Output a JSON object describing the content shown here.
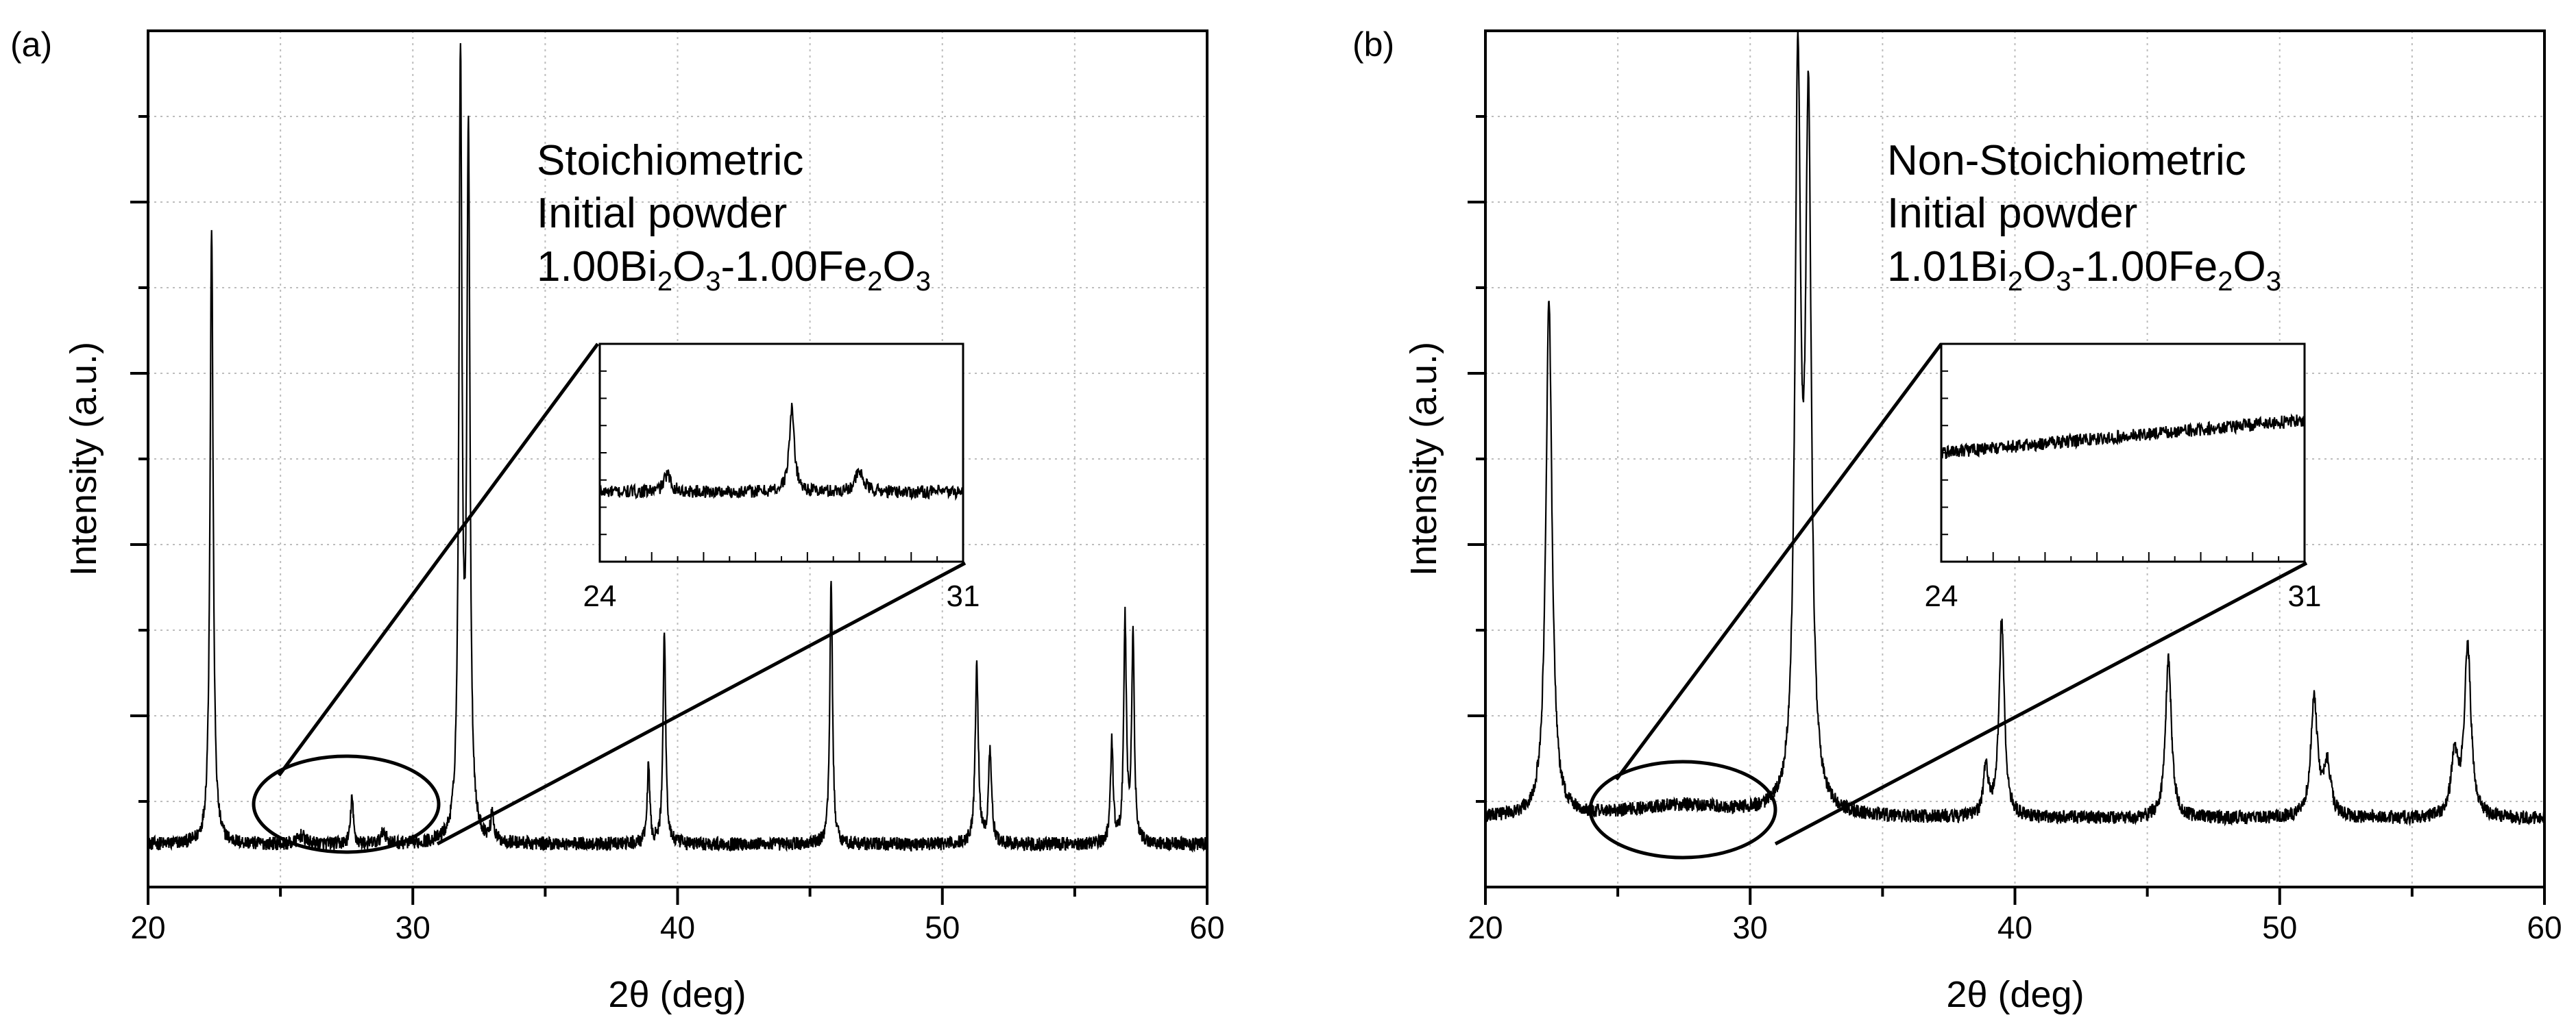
{
  "figure": {
    "panels": [
      {
        "id": "a",
        "panel_label": "(a)",
        "annotation": {
          "line1": "Stoichiometric",
          "line2": "Initial powder",
          "formula_parts": [
            "1.00Bi",
            "2",
            "O",
            "3",
            "-1.00Fe",
            "2",
            "O",
            "3"
          ]
        },
        "inset": {
          "x_start_label": "24",
          "x_end_label": "31"
        }
      },
      {
        "id": "b",
        "panel_label": "(b)",
        "annotation": {
          "line1": "Non-Stoichiometric",
          "line2": "Initial powder",
          "formula_parts": [
            "1.01Bi",
            "2",
            "O",
            "3",
            "-1.00Fe",
            "2",
            "O",
            "3"
          ]
        },
        "inset": {
          "x_start_label": "24",
          "x_end_label": "31"
        }
      }
    ]
  },
  "chart_data": [
    {
      "type": "line",
      "title": "",
      "xlabel": "2θ (deg)",
      "ylabel": "Intensity (a.u.)",
      "xlim": [
        20,
        60
      ],
      "ylim": [
        0,
        100
      ],
      "xticks": [
        20,
        30,
        40,
        50,
        60
      ],
      "grid": true,
      "background": 5,
      "noise": 0.8,
      "peaks": [
        {
          "x": 22.4,
          "h": 72,
          "w": 0.07
        },
        {
          "x": 25.8,
          "h": 1.0,
          "w": 0.15
        },
        {
          "x": 27.7,
          "h": 5.5,
          "w": 0.06
        },
        {
          "x": 28.9,
          "h": 1.5,
          "w": 0.1
        },
        {
          "x": 31.8,
          "h": 90,
          "w": 0.07
        },
        {
          "x": 32.1,
          "h": 81,
          "w": 0.07
        },
        {
          "x": 33.0,
          "h": 3.5,
          "w": 0.06
        },
        {
          "x": 38.9,
          "h": 9,
          "w": 0.06
        },
        {
          "x": 39.5,
          "h": 25,
          "w": 0.06
        },
        {
          "x": 45.8,
          "h": 31,
          "w": 0.06
        },
        {
          "x": 51.3,
          "h": 21,
          "w": 0.07
        },
        {
          "x": 51.8,
          "h": 11,
          "w": 0.07
        },
        {
          "x": 56.4,
          "h": 12,
          "w": 0.06
        },
        {
          "x": 56.9,
          "h": 26,
          "w": 0.06
        },
        {
          "x": 57.2,
          "h": 24,
          "w": 0.06
        }
      ],
      "inset": {
        "x_range": [
          24,
          31
        ],
        "peaks": [
          {
            "x": 25.3,
            "h": 8,
            "w": 0.08
          },
          {
            "x": 27.7,
            "h": 38,
            "w": 0.06
          },
          {
            "x": 29.0,
            "h": 9,
            "w": 0.1
          }
        ],
        "background": 32,
        "noise": 3,
        "slope": 0
      }
    },
    {
      "type": "line",
      "title": "",
      "xlabel": "2θ (deg)",
      "ylabel": "Intensity (a.u.)",
      "xlim": [
        20,
        60
      ],
      "ylim": [
        0,
        100
      ],
      "xticks": [
        20,
        30,
        40,
        50,
        60
      ],
      "grid": true,
      "background": 8,
      "noise": 0.8,
      "peaks": [
        {
          "x": 22.4,
          "h": 60,
          "w": 0.14
        },
        {
          "x": 27.5,
          "h": 1.5,
          "w": 2.5
        },
        {
          "x": 31.8,
          "h": 84,
          "w": 0.13
        },
        {
          "x": 32.2,
          "h": 79,
          "w": 0.13
        },
        {
          "x": 38.9,
          "h": 6,
          "w": 0.1
        },
        {
          "x": 39.5,
          "h": 23,
          "w": 0.12
        },
        {
          "x": 45.8,
          "h": 19,
          "w": 0.13
        },
        {
          "x": 51.3,
          "h": 14,
          "w": 0.15
        },
        {
          "x": 51.8,
          "h": 6,
          "w": 0.15
        },
        {
          "x": 56.6,
          "h": 7,
          "w": 0.15
        },
        {
          "x": 57.1,
          "h": 20,
          "w": 0.15
        }
      ],
      "inset": {
        "x_range": [
          24,
          31
        ],
        "peaks": [],
        "background": 50,
        "noise": 3,
        "slope": 15
      }
    }
  ]
}
